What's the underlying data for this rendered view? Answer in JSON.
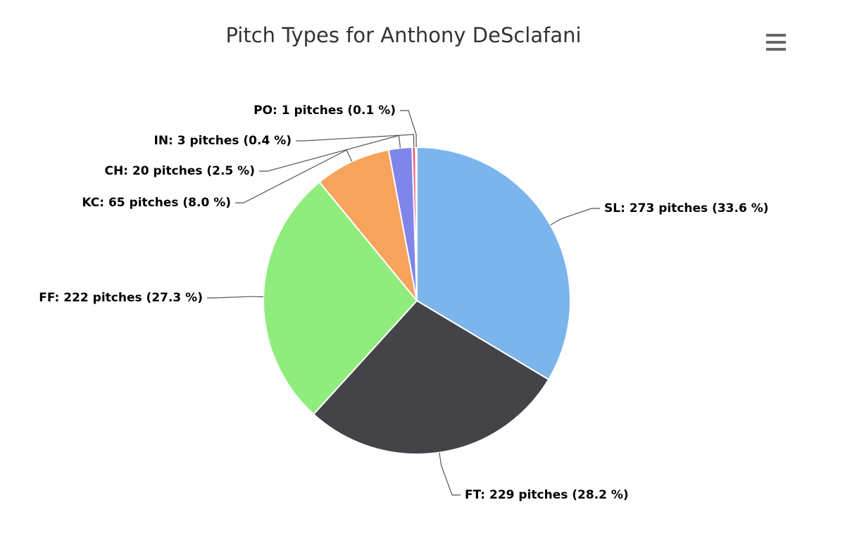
{
  "chart_data": {
    "type": "pie",
    "title": "Pitch Types for Anthony DeSclafani",
    "values": [
      273,
      229,
      222,
      65,
      20,
      3,
      1
    ],
    "value_labels": [
      "SL: 273 pitches (33.6 %)",
      "FT: 229 pitches (28.2 %)",
      "FF: 222 pitches (27.3 %)",
      "KC: 65 pitches (8.0 %)",
      "CH: 20 pitches (2.5 %)",
      "IN: 3 pitches (0.4 %)",
      "PO: 1 pitches (0.1 %)"
    ],
    "colors": [
      "#7cb5ec",
      "#434348",
      "#90ed7d",
      "#f7a35c",
      "#8085e9",
      "#f15c80",
      "#e4d354"
    ]
  }
}
